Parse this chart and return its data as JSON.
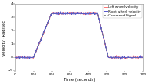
{
  "title": "",
  "xlabel": "Time (seconds)",
  "ylabel": "Velocity (Rad/sec)",
  "xlim": [
    0,
    700
  ],
  "ylim": [
    -1,
    4
  ],
  "yticks": [
    -1,
    0,
    1,
    2,
    3,
    4
  ],
  "xticks": [
    0,
    100,
    200,
    300,
    400,
    500,
    600,
    700
  ],
  "legend": [
    "Left wheel velocity",
    "Right wheel velocity",
    "Command Signal"
  ],
  "left_color": "#FF7777",
  "right_color": "#5555CC",
  "cmd_color": "#888888",
  "ramp_up_start": 100,
  "ramp_up_end": 200,
  "flat_end": 450,
  "ramp_down_end": 510,
  "peak_vel": 3.3,
  "noise_std": 0.035,
  "bg_color": "#ffffff"
}
